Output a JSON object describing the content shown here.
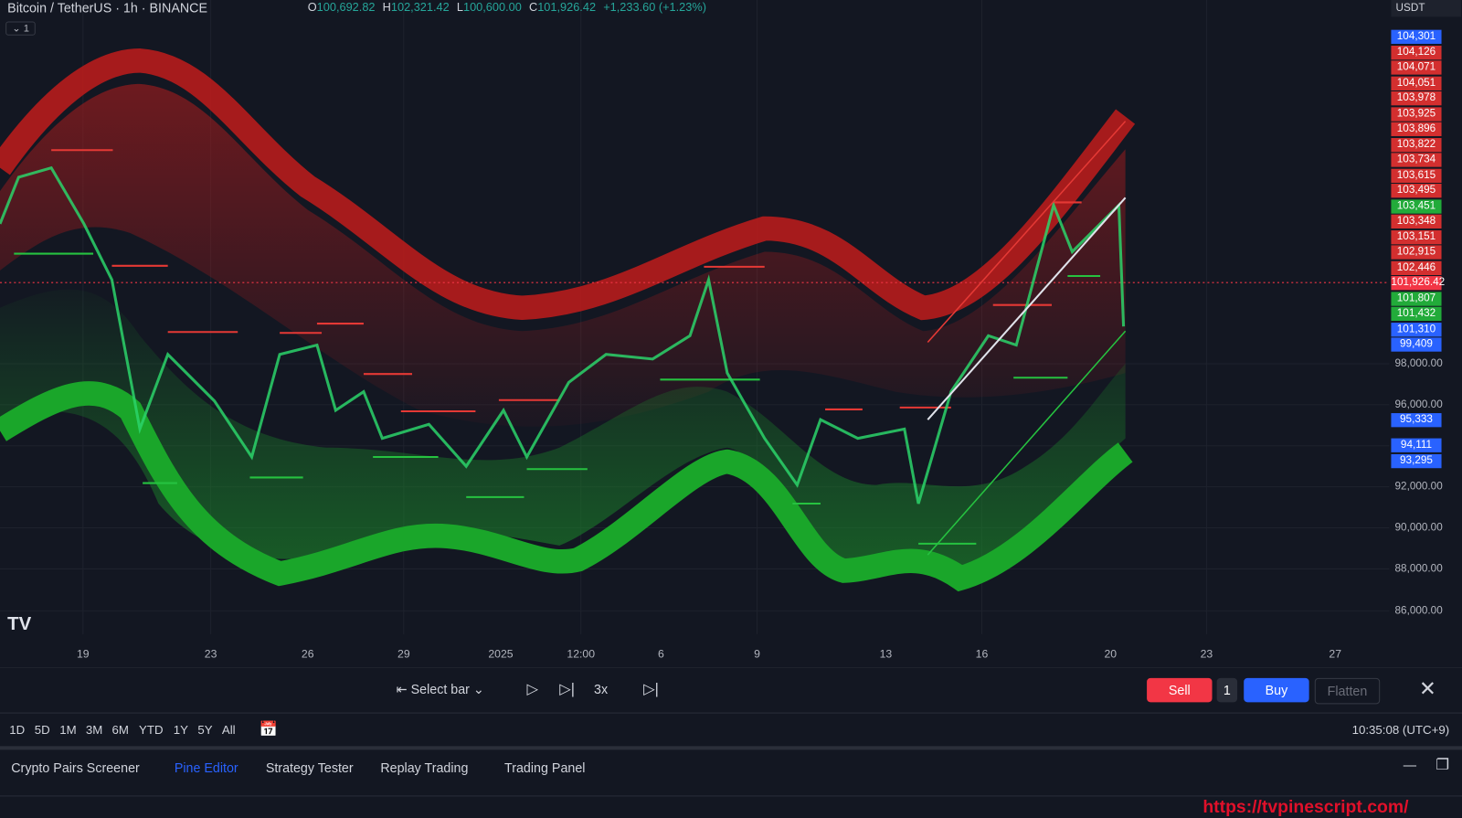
{
  "header": {
    "symbol": "Bitcoin / TetherUS · 1h · BINANCE",
    "ohlc": [
      {
        "key": "O",
        "value": "100,692.82"
      },
      {
        "key": "H",
        "value": "102,321.42"
      },
      {
        "key": "L",
        "value": "100,600.00"
      },
      {
        "key": "C",
        "value": "101,926.42"
      }
    ],
    "change": "+1,233.60 (+1.23%)",
    "indicator_count": "1",
    "currency": "USDT"
  },
  "price_labels": [
    {
      "text": "104,301",
      "color": "#2962ff"
    },
    {
      "text": "104,126",
      "color": "#d32f2f"
    },
    {
      "text": "104,071",
      "color": "#d32f2f"
    },
    {
      "text": "104,051",
      "color": "#d32f2f"
    },
    {
      "text": "103,978",
      "color": "#d32f2f"
    },
    {
      "text": "103,925",
      "color": "#d32f2f"
    },
    {
      "text": "103,896",
      "color": "#d32f2f"
    },
    {
      "text": "103,822",
      "color": "#d32f2f"
    },
    {
      "text": "103,734",
      "color": "#d32f2f"
    },
    {
      "text": "103,615",
      "color": "#d32f2f"
    },
    {
      "text": "103,495",
      "color": "#d32f2f"
    },
    {
      "text": "103,451",
      "color": "#22ab3a"
    },
    {
      "text": "103,348",
      "color": "#d32f2f"
    },
    {
      "text": "103,151",
      "color": "#d32f2f"
    },
    {
      "text": "102,915",
      "color": "#d32f2f"
    },
    {
      "text": "102,446",
      "color": "#d32f2f"
    },
    {
      "text": "101,926.42",
      "color": "#f23645"
    },
    {
      "text": "101,807",
      "color": "#22ab3a"
    },
    {
      "text": "101,432",
      "color": "#22ab3a"
    },
    {
      "text": "101,310",
      "color": "#2962ff"
    },
    {
      "text": "99,409",
      "color": "#2962ff"
    },
    {
      "text": "95,333",
      "color": "#2962ff"
    },
    {
      "text": "94,111",
      "color": "#2962ff"
    },
    {
      "text": "93,295",
      "color": "#2962ff"
    }
  ],
  "price_axis": [
    "98,000.00",
    "96,000.00",
    "92,000.00",
    "90,000.00",
    "88,000.00",
    "86,000.00"
  ],
  "time_axis": [
    "19",
    "23",
    "26",
    "29",
    "2025",
    "12:00",
    "6",
    "9",
    "13",
    "16",
    "20",
    "23",
    "27"
  ],
  "replay_bar": {
    "select_bar": "Select bar",
    "speed": "3x",
    "sell": "Sell",
    "quantity": "1",
    "buy": "Buy",
    "flatten": "Flatten"
  },
  "timeframes": [
    "1D",
    "5D",
    "1M",
    "3M",
    "6M",
    "YTD",
    "1Y",
    "5Y",
    "All"
  ],
  "clock": "10:35:08 (UTC+9)",
  "tabs": [
    "Crypto Pairs Screener",
    "Pine Editor",
    "Strategy Tester",
    "Replay Trading",
    "Trading Panel"
  ],
  "watermark": "https://tvpinescript.com/"
}
